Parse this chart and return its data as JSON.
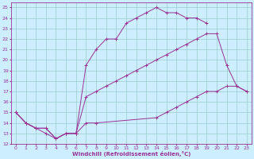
{
  "xlabel": "Windchill (Refroidissement éolien,°C)",
  "xlim": [
    -0.5,
    23.5
  ],
  "ylim": [
    12,
    25.5
  ],
  "xticks": [
    0,
    1,
    2,
    3,
    4,
    5,
    6,
    7,
    8,
    9,
    10,
    11,
    12,
    13,
    14,
    15,
    16,
    17,
    18,
    19,
    20,
    21,
    22,
    23
  ],
  "yticks": [
    12,
    13,
    14,
    15,
    16,
    17,
    18,
    19,
    20,
    21,
    22,
    23,
    24,
    25
  ],
  "bg_color": "#cceeff",
  "grid_color": "#99cccc",
  "line_color": "#993399",
  "line1_x": [
    0,
    1,
    2,
    3,
    4,
    5,
    6,
    7,
    8,
    9,
    10,
    11,
    12,
    13,
    14,
    15,
    16,
    17,
    18,
    19
  ],
  "line1_y": [
    15,
    14,
    13.5,
    13.5,
    12.5,
    13,
    13,
    19.5,
    21,
    22,
    22,
    23.5,
    24,
    24.5,
    25,
    24.5,
    24.5,
    24,
    24,
    23.5
  ],
  "line2_x": [
    0,
    1,
    2,
    3,
    4,
    5,
    6,
    7,
    8,
    9,
    10,
    11,
    12,
    13,
    14,
    15,
    16,
    17,
    18,
    19,
    20,
    21,
    22,
    23
  ],
  "line2_y": [
    15,
    14,
    13.5,
    13.5,
    12.5,
    13,
    13,
    16.5,
    17,
    17.5,
    18,
    18.5,
    19,
    19.5,
    20,
    20.5,
    21,
    21.5,
    22,
    22.5,
    22.5,
    19.5,
    17.5,
    17
  ],
  "line3_x": [
    0,
    1,
    2,
    3,
    4,
    5,
    6,
    7,
    8,
    14,
    15,
    16,
    17,
    18,
    19,
    20,
    21,
    22,
    23
  ],
  "line3_y": [
    15,
    14,
    13.5,
    13,
    12.5,
    13,
    13,
    14,
    14,
    14.5,
    15,
    15.5,
    16,
    16.5,
    17,
    17,
    17.5,
    17.5,
    17
  ]
}
